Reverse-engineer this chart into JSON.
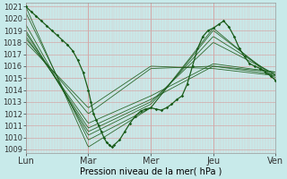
{
  "xlabel": "Pression niveau de la mer( hPa )",
  "bg_color": "#c8eaea",
  "grid_major_color": "#d4a8a8",
  "grid_minor_color": "#dcc0c0",
  "line_color": "#1a5c1a",
  "ylim": [
    1009,
    1021
  ],
  "yticks": [
    1009,
    1010,
    1011,
    1012,
    1013,
    1014,
    1015,
    1016,
    1017,
    1018,
    1019,
    1020,
    1021
  ],
  "day_labels": [
    "Lun",
    "Mar",
    "Mer",
    "Jeu",
    "Ven"
  ],
  "figsize": [
    3.2,
    2.0
  ],
  "dpi": 100,
  "n_days": 4,
  "hours_per_day": 24,
  "forecast_lines": [
    {
      "x": [
        0,
        24,
        48,
        72,
        96
      ],
      "y": [
        1021.0,
        1009.2,
        1012.5,
        1019.2,
        1014.8
      ]
    },
    {
      "x": [
        0,
        24,
        48,
        72,
        96
      ],
      "y": [
        1020.5,
        1009.8,
        1012.5,
        1019.0,
        1015.0
      ]
    },
    {
      "x": [
        0,
        24,
        48,
        72,
        96
      ],
      "y": [
        1019.5,
        1010.2,
        1012.8,
        1018.5,
        1015.2
      ]
    },
    {
      "x": [
        0,
        24,
        48,
        72,
        96
      ],
      "y": [
        1019.0,
        1010.5,
        1013.0,
        1018.0,
        1015.3
      ]
    },
    {
      "x": [
        0,
        24,
        48,
        72,
        96
      ],
      "y": [
        1018.8,
        1010.8,
        1013.2,
        1016.0,
        1015.5
      ]
    },
    {
      "x": [
        0,
        24,
        48,
        72,
        96
      ],
      "y": [
        1018.5,
        1011.2,
        1013.5,
        1016.2,
        1015.5
      ]
    },
    {
      "x": [
        0,
        24,
        48,
        72,
        96
      ],
      "y": [
        1018.3,
        1012.0,
        1015.8,
        1016.0,
        1015.3
      ]
    },
    {
      "x": [
        0,
        24,
        48,
        72,
        96
      ],
      "y": [
        1018.0,
        1012.5,
        1016.0,
        1015.8,
        1015.2
      ]
    }
  ],
  "main_x": [
    0,
    2,
    4,
    6,
    8,
    10,
    12,
    14,
    16,
    18,
    20,
    22,
    24,
    25,
    26,
    27,
    28,
    29,
    30,
    31,
    32,
    33,
    34,
    36,
    38,
    40,
    42,
    44,
    46,
    48,
    50,
    52,
    54,
    56,
    58,
    60,
    62,
    64,
    66,
    68,
    70,
    72,
    74,
    76,
    78,
    80,
    82,
    84,
    86,
    88,
    90,
    92,
    94,
    96
  ],
  "main_y": [
    1021.0,
    1020.6,
    1020.2,
    1019.8,
    1019.4,
    1019.0,
    1018.6,
    1018.2,
    1017.8,
    1017.3,
    1016.5,
    1015.5,
    1014.0,
    1013.0,
    1012.0,
    1011.5,
    1011.0,
    1010.5,
    1010.0,
    1009.6,
    1009.4,
    1009.2,
    1009.4,
    1009.8,
    1010.5,
    1011.2,
    1011.8,
    1012.2,
    1012.4,
    1012.5,
    1012.4,
    1012.3,
    1012.5,
    1012.8,
    1013.2,
    1013.5,
    1014.5,
    1016.0,
    1017.5,
    1018.5,
    1019.0,
    1019.2,
    1019.5,
    1019.8,
    1019.3,
    1018.5,
    1017.5,
    1016.8,
    1016.2,
    1016.0,
    1015.8,
    1015.5,
    1015.2,
    1014.8
  ]
}
